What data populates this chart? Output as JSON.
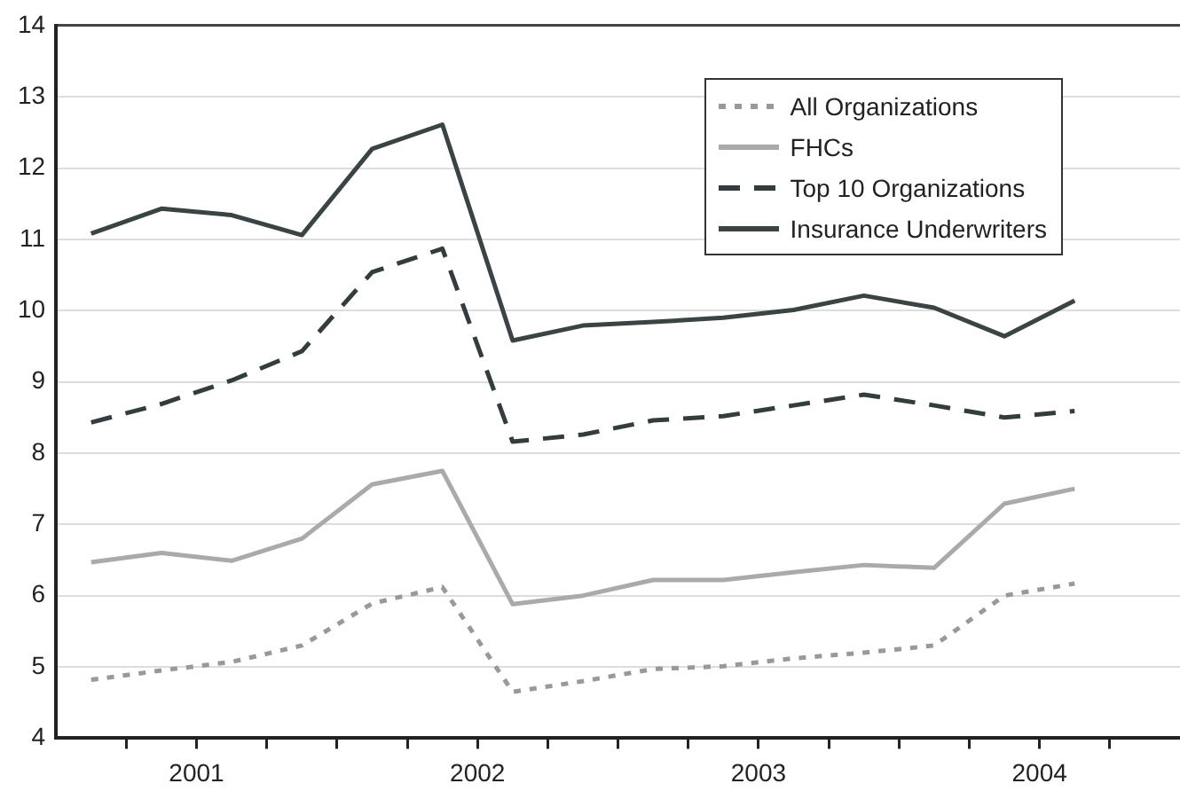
{
  "chart_data": {
    "type": "line",
    "x": [
      2000.625,
      2000.875,
      2001.125,
      2001.375,
      2001.625,
      2001.875,
      2002.125,
      2002.375,
      2002.625,
      2002.875,
      2003.125,
      2003.375,
      2003.625,
      2003.875,
      2004.125
    ],
    "xlim": [
      2000.5,
      2004.5
    ],
    "xticks": [
      {
        "value": 2000.75,
        "label": null
      },
      2001,
      {
        "value": 2001.25,
        "label": null
      },
      {
        "value": 2001.5,
        "label": null
      },
      {
        "value": 2001.75,
        "label": null
      },
      2002,
      {
        "value": 2002.25,
        "label": null
      },
      {
        "value": 2002.5,
        "label": null
      },
      {
        "value": 2002.75,
        "label": null
      },
      2003,
      {
        "value": 2003.25,
        "label": null
      },
      {
        "value": 2003.5,
        "label": null
      },
      {
        "value": 2003.75,
        "label": null
      },
      2004,
      {
        "value": 2004.25,
        "label": null
      }
    ],
    "ylim": [
      4,
      14
    ],
    "yticks": [
      4,
      5,
      6,
      7,
      8,
      9,
      10,
      11,
      12,
      13,
      14
    ],
    "grid": "y",
    "legend": "top right",
    "marker": "none",
    "series": [
      {
        "name": "All Organizations",
        "color": "#999999",
        "line_style": "dotted",
        "values": [
          4.82,
          4.95,
          5.07,
          5.3,
          5.89,
          6.12,
          4.65,
          4.8,
          4.97,
          5.01,
          5.12,
          5.2,
          5.3,
          6.0,
          6.17
        ]
      },
      {
        "name": "FHCs",
        "color": "#aaaaaa",
        "line_style": "solid",
        "values": [
          6.47,
          6.6,
          6.49,
          6.8,
          7.56,
          7.75,
          5.88,
          6.0,
          6.22,
          6.22,
          6.33,
          6.43,
          6.39,
          7.29,
          7.5
        ]
      },
      {
        "name": "Top 10 Organizations",
        "color": "#333d3d",
        "line_style": "dashed",
        "values": [
          8.43,
          8.69,
          9.02,
          9.43,
          10.54,
          10.87,
          8.16,
          8.26,
          8.46,
          8.52,
          8.67,
          8.82,
          8.67,
          8.5,
          8.59
        ]
      },
      {
        "name": "Insurance Underwriters",
        "color": "#3a4444",
        "line_style": "solid",
        "values": [
          11.08,
          11.43,
          11.34,
          11.06,
          12.27,
          12.61,
          9.58,
          9.79,
          9.84,
          9.9,
          10.01,
          10.21,
          10.04,
          9.64,
          10.14
        ]
      }
    ]
  }
}
